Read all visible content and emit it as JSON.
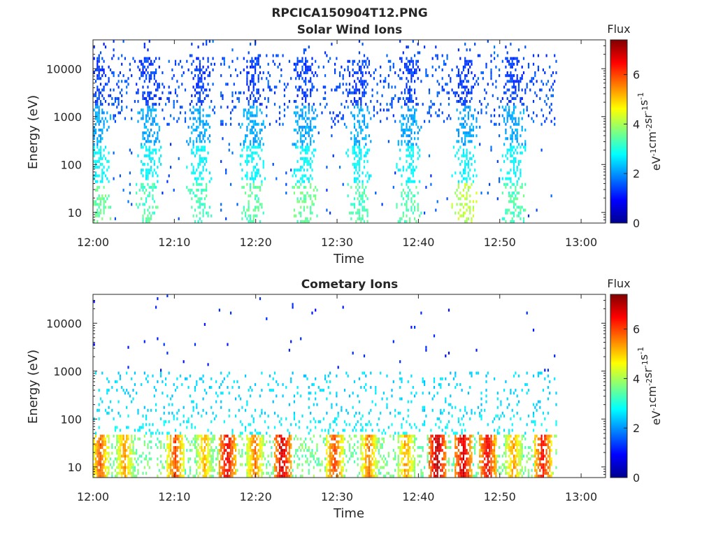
{
  "figure_title": "RPCICA150904T12.PNG",
  "colorbar": {
    "label": "Flux",
    "unit_base": "eV",
    "unit_parts": [
      {
        "t": "eV",
        "sup": "-1"
      },
      {
        "t": "cm",
        "sup": "-2"
      },
      {
        "t": "sr",
        "sup": "-1"
      },
      {
        "t": "s",
        "sup": "-1"
      }
    ],
    "ticks": [
      "0",
      "2",
      "4",
      "6"
    ],
    "range": [
      0,
      7.4
    ],
    "colormap": "jet"
  },
  "chart_data": [
    {
      "type": "heatmap",
      "title": "Solar Wind Ions",
      "xlabel": "Time",
      "ylabel": "Energy (eV)",
      "yscale": "log",
      "ylim": [
        6,
        40000
      ],
      "xlim": [
        "12:00",
        "13:03"
      ],
      "xticks": [
        "12:00",
        "12:10",
        "12:20",
        "12:30",
        "12:40",
        "12:50",
        "13:00"
      ],
      "yticks": [
        "10",
        "100",
        "1000",
        "10000"
      ],
      "data_end": "12:57",
      "bursts": [
        {
          "time": "12:00.5",
          "peak_flux": 3.6
        },
        {
          "time": "12:06.8",
          "peak_flux": 3.4
        },
        {
          "time": "12:13.0",
          "peak_flux": 3.4
        },
        {
          "time": "12:19.6",
          "peak_flux": 3.5
        },
        {
          "time": "12:26.0",
          "peak_flux": 3.6
        },
        {
          "time": "12:32.6",
          "peak_flux": 3.4
        },
        {
          "time": "12:38.8",
          "peak_flux": 3.5
        },
        {
          "time": "12:45.6",
          "peak_flux": 4.2
        },
        {
          "time": "12:51.6",
          "peak_flux": 3.4
        }
      ]
    },
    {
      "type": "heatmap",
      "title": "Cometary Ions",
      "xlabel": "Time",
      "ylabel": "Energy (eV)",
      "yscale": "log",
      "ylim": [
        6,
        40000
      ],
      "xlim": [
        "12:00",
        "13:03"
      ],
      "xticks": [
        "12:00",
        "12:10",
        "12:20",
        "12:30",
        "12:40",
        "12:50",
        "13:00"
      ],
      "yticks": [
        "10",
        "100",
        "1000",
        "10000"
      ],
      "data_end": "12:57",
      "bursts": [
        {
          "time": "12:00.8",
          "peak_flux": 5.8
        },
        {
          "time": "12:03.8",
          "peak_flux": 5.4
        },
        {
          "time": "12:10.0",
          "peak_flux": 6.0
        },
        {
          "time": "12:13.6",
          "peak_flux": 5.2
        },
        {
          "time": "12:16.4",
          "peak_flux": 6.6
        },
        {
          "time": "12:19.8",
          "peak_flux": 5.6
        },
        {
          "time": "12:23.2",
          "peak_flux": 6.8
        },
        {
          "time": "12:29.6",
          "peak_flux": 6.0
        },
        {
          "time": "12:33.8",
          "peak_flux": 5.6
        },
        {
          "time": "12:38.4",
          "peak_flux": 5.4
        },
        {
          "time": "12:42.2",
          "peak_flux": 7.0
        },
        {
          "time": "12:45.4",
          "peak_flux": 6.8
        },
        {
          "time": "12:48.4",
          "peak_flux": 6.6
        },
        {
          "time": "12:51.6",
          "peak_flux": 5.4
        },
        {
          "time": "12:55.2",
          "peak_flux": 6.4
        }
      ]
    }
  ]
}
